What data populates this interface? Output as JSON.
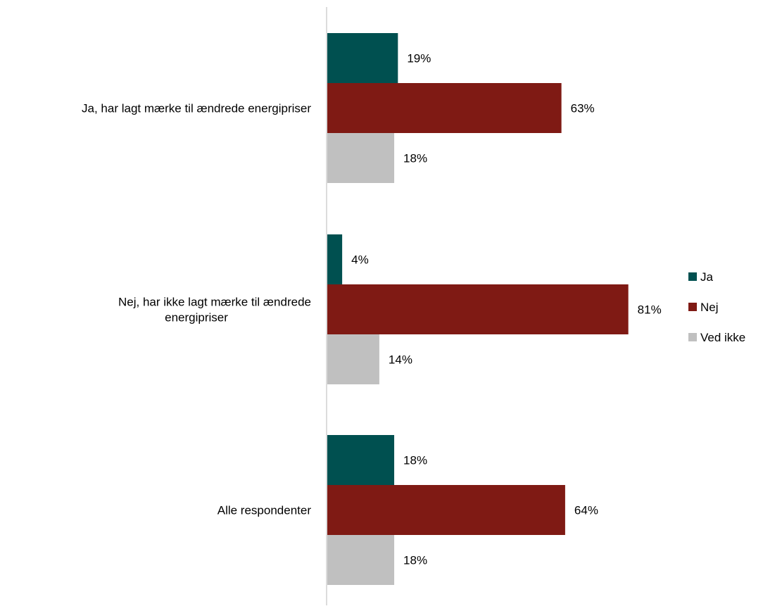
{
  "chart_data": {
    "type": "bar",
    "orientation": "horizontal",
    "categories": [
      [
        "Ja, har lagt mærke til ændrede energipriser"
      ],
      [
        "Nej, har ikke lagt mærke til ændrede",
        "energipriser"
      ],
      [
        "Alle respondenter"
      ]
    ],
    "series": [
      {
        "name": "Ja",
        "color": "#005050",
        "values": [
          19,
          4,
          18
        ]
      },
      {
        "name": "Nej",
        "color": "#7f1a14",
        "values": [
          63,
          81,
          64
        ]
      },
      {
        "name": "Ved ikke",
        "color": "#c0c0c0",
        "values": [
          18,
          14,
          18
        ]
      }
    ],
    "value_suffix": "%",
    "xlim": [
      0,
      100
    ],
    "grid": false,
    "legend_position": "right",
    "axis_color": "#d0d0d0"
  }
}
